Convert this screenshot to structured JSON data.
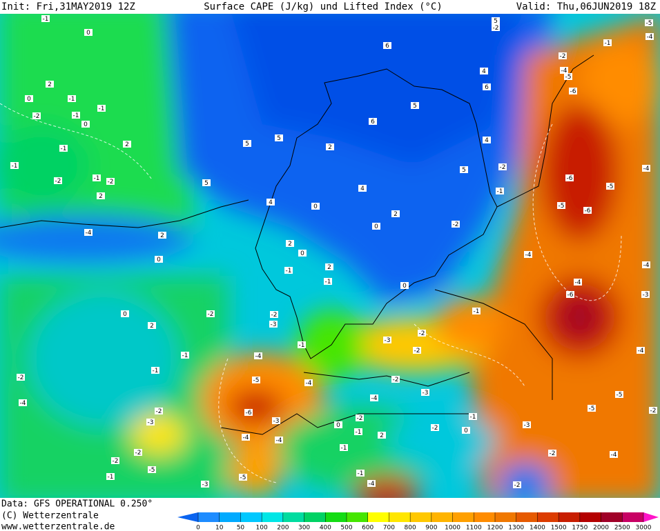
{
  "header": {
    "init": "Init: Fri,31MAY2019 12Z",
    "title": "Surface CAPE (J/kg) und Lifted Index (°C)",
    "valid": "Valid: Thu,06JUN2019 18Z"
  },
  "footer": {
    "data": "Data: GFS OPERATIONAL 0.250°",
    "copyright": "(C) Wetterzentrale",
    "url": "www.wetterzentrale.de"
  },
  "colorbar": {
    "ticks": [
      0,
      10,
      50,
      100,
      200,
      300,
      400,
      500,
      600,
      700,
      800,
      900,
      1000,
      1100,
      1200,
      1300,
      1400,
      1500,
      1750,
      2000,
      2500,
      3000
    ],
    "colors": [
      "#1e8cff",
      "#00aaff",
      "#00c8ff",
      "#00e6e6",
      "#00dca0",
      "#00d264",
      "#14dc14",
      "#46e600",
      "#ffff00",
      "#ffe600",
      "#ffc800",
      "#ffb400",
      "#ffa000",
      "#ff8c00",
      "#f07800",
      "#e65a00",
      "#dc3c00",
      "#c81e00",
      "#b40000",
      "#a00028",
      "#c80064"
    ],
    "under_color": "#0a64f0",
    "over_color": "#ff14c8"
  },
  "contour_labels": [
    -1,
    0,
    2,
    0,
    -1,
    -1,
    -1,
    -2,
    0,
    2,
    -1,
    -1,
    -2,
    -1,
    -2,
    2,
    -4,
    2,
    0,
    0,
    2,
    -2,
    -1,
    -1,
    -2,
    -4,
    -3,
    -2,
    -2,
    -2,
    -1,
    -5,
    -3,
    -4,
    -5,
    -6,
    -3,
    -4,
    -4,
    -5,
    -1,
    -4,
    -2,
    -3,
    -1,
    -1,
    2,
    0,
    2,
    4,
    0,
    2,
    5,
    5,
    5,
    4,
    6,
    6,
    5,
    6,
    4,
    4,
    -2,
    5,
    -1,
    2,
    0,
    0,
    -2,
    -1,
    -2,
    -3,
    -2,
    -2,
    -3,
    -4,
    -2,
    0,
    2,
    -1,
    -1,
    -1,
    -4,
    -2,
    -1,
    0,
    -3,
    -2,
    -2,
    -4,
    -5,
    -5,
    -6,
    -4,
    -4,
    -6,
    -5,
    -6,
    -5,
    -6,
    -2,
    -5,
    -4,
    -1,
    -5,
    -4,
    -4,
    -4,
    -3,
    -4,
    -2,
    -2,
    5
  ]
}
